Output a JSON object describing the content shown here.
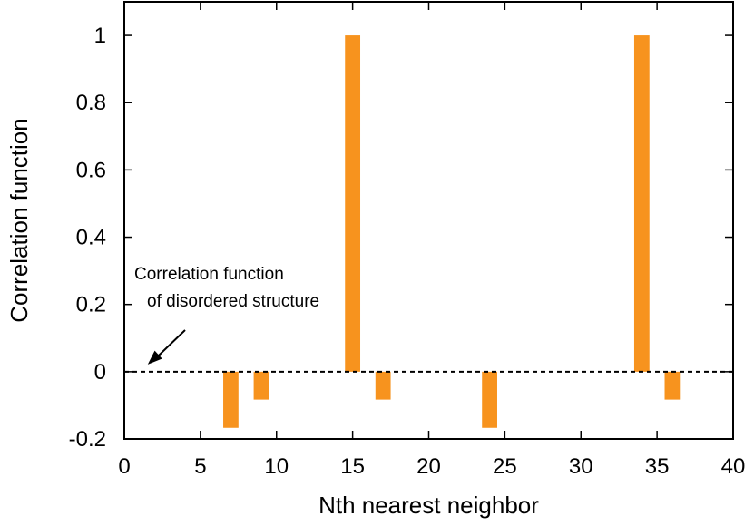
{
  "chart_data": {
    "type": "bar",
    "xlabel": "Nth nearest neighbor",
    "ylabel": "Correlation function",
    "xlim": [
      0,
      40
    ],
    "ylim": [
      -0.2,
      1.1
    ],
    "xticks": [
      0,
      5,
      10,
      15,
      20,
      25,
      30,
      35,
      40
    ],
    "yticks": [
      -0.2,
      0,
      0.2,
      0.4,
      0.6,
      0.8,
      1
    ],
    "ytick_labels": [
      "-0.2",
      "0",
      "0.2",
      "0.4",
      "0.6",
      "0.8",
      "1"
    ],
    "bar_width": 1,
    "bar_color": "#f7931e",
    "bars": [
      {
        "x": 7,
        "y": -0.167
      },
      {
        "x": 9,
        "y": -0.083
      },
      {
        "x": 15,
        "y": 1.0
      },
      {
        "x": 17,
        "y": -0.083
      },
      {
        "x": 24,
        "y": -0.167
      },
      {
        "x": 34,
        "y": 1.0
      },
      {
        "x": 36,
        "y": -0.083
      }
    ],
    "reference_line": {
      "y": 0,
      "style": "dashed"
    },
    "annotation": {
      "lines": [
        "Correlation function",
        "of disordered structure"
      ],
      "arrow_to": {
        "x": 1.3,
        "y": 0
      }
    }
  }
}
